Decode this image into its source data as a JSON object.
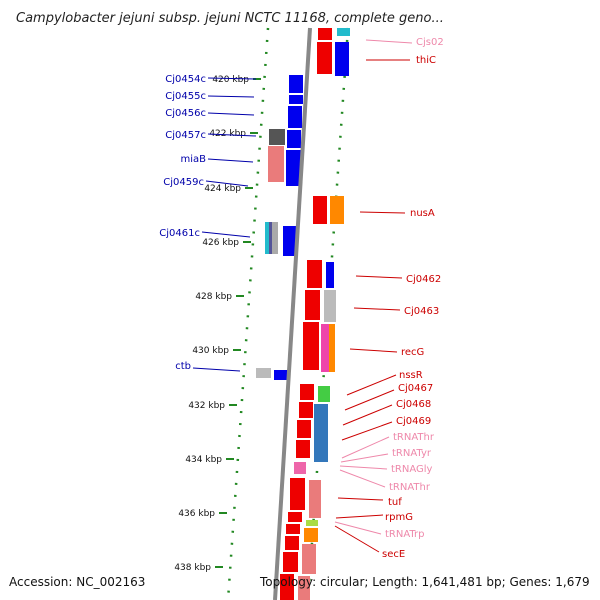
{
  "title": "Campylobacter jejuni subsp. jejuni NCTC 11168, complete geno...",
  "footer": {
    "accession": "Accession: NC_002163",
    "topology": "Topology: circular; Length: 1,641,481 bp; Genes: 1,679"
  },
  "colors": {
    "reverse_label": "#0000aa",
    "forward_label": "#cc0000",
    "rna_label": "#ee88aa",
    "tick": "#228822",
    "forward_gene": "#ee0000",
    "reverse_gene": "#0000ee"
  },
  "kbp_ticks": [
    "420 kbp",
    "422 kbp",
    "424 kbp",
    "426 kbp",
    "428 kbp",
    "430 kbp",
    "432 kbp",
    "434 kbp",
    "436 kbp",
    "438 kbp"
  ],
  "reverse_genes": [
    "Cj0454c",
    "Cj0455c",
    "Cj0456c",
    "Cj0457c",
    "miaB",
    "Cj0459c",
    "Cj0461c",
    "ctb"
  ],
  "forward_genes": [
    "thiC",
    "nusA",
    "Cj0462",
    "Cj0463",
    "recG",
    "nssR",
    "Cj0467",
    "Cj0468",
    "Cj0469",
    "tuf",
    "rpmG",
    "secE"
  ],
  "rna_genes": [
    "Cjs02",
    "tRNAThr",
    "tRNATyr",
    "tRNAGly",
    "tRNAThr",
    "tRNATrp"
  ]
}
